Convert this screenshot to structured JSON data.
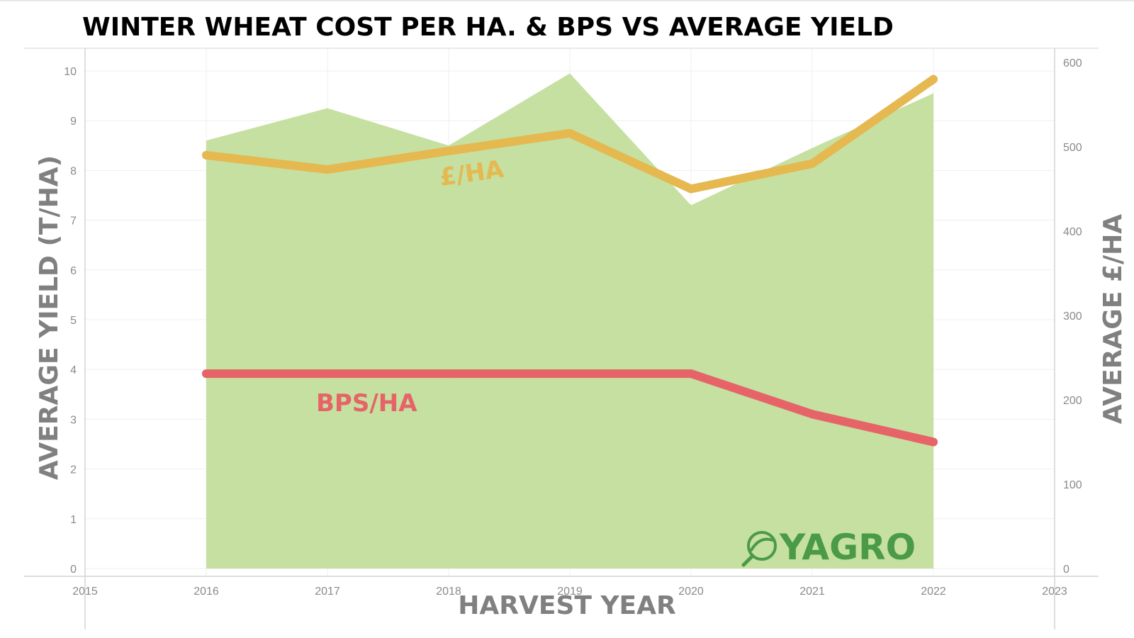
{
  "chart_data": {
    "type": "area",
    "title": "WINTER WHEAT COST PER HA. & BPS VS AVERAGE YIELD",
    "xlabel": "HARVEST YEAR",
    "ylabel": "AVERAGE YIELD (T/HA)",
    "y2label": "AVERAGE  £/HA",
    "x_ticks": [
      "2015",
      "2016",
      "2017",
      "2018",
      "2019",
      "2020",
      "2021",
      "2022",
      "2023"
    ],
    "xlim": [
      2015,
      2023
    ],
    "y_ticks": [
      "0",
      "1",
      "2",
      "3",
      "4",
      "5",
      "6",
      "7",
      "8",
      "9",
      "10"
    ],
    "ylim": [
      0,
      10.2
    ],
    "y2_ticks": [
      "0",
      "100",
      "200",
      "300",
      "400",
      "500",
      "600"
    ],
    "y2lim": [
      0,
      600
    ],
    "x": [
      2016,
      2017,
      2018,
      2019,
      2020,
      2021,
      2022
    ],
    "series": [
      {
        "name": "Average yield",
        "axis": "left",
        "kind": "area",
        "color": "#c5e0a0",
        "values": [
          8.6,
          9.25,
          8.5,
          9.95,
          7.3,
          8.45,
          9.55
        ]
      },
      {
        "name": "£/HA",
        "axis": "right",
        "kind": "line",
        "color": "#e5b850",
        "values": [
          490,
          473,
          495,
          516,
          450,
          480,
          580
        ]
      },
      {
        "name": "BPS/HA",
        "axis": "right",
        "kind": "line",
        "color": "#e66468",
        "values": [
          231,
          231,
          231,
          231,
          231,
          183,
          150
        ]
      }
    ],
    "annotations": [
      {
        "text": "£/HA",
        "color": "#e5b850"
      },
      {
        "text": "BPS/HA",
        "color": "#e66468"
      }
    ],
    "grid": true,
    "legend": "none"
  },
  "brand": {
    "name": "YAGRO",
    "icon": "leaf-magnifier-icon",
    "color": "#4a9a47"
  }
}
